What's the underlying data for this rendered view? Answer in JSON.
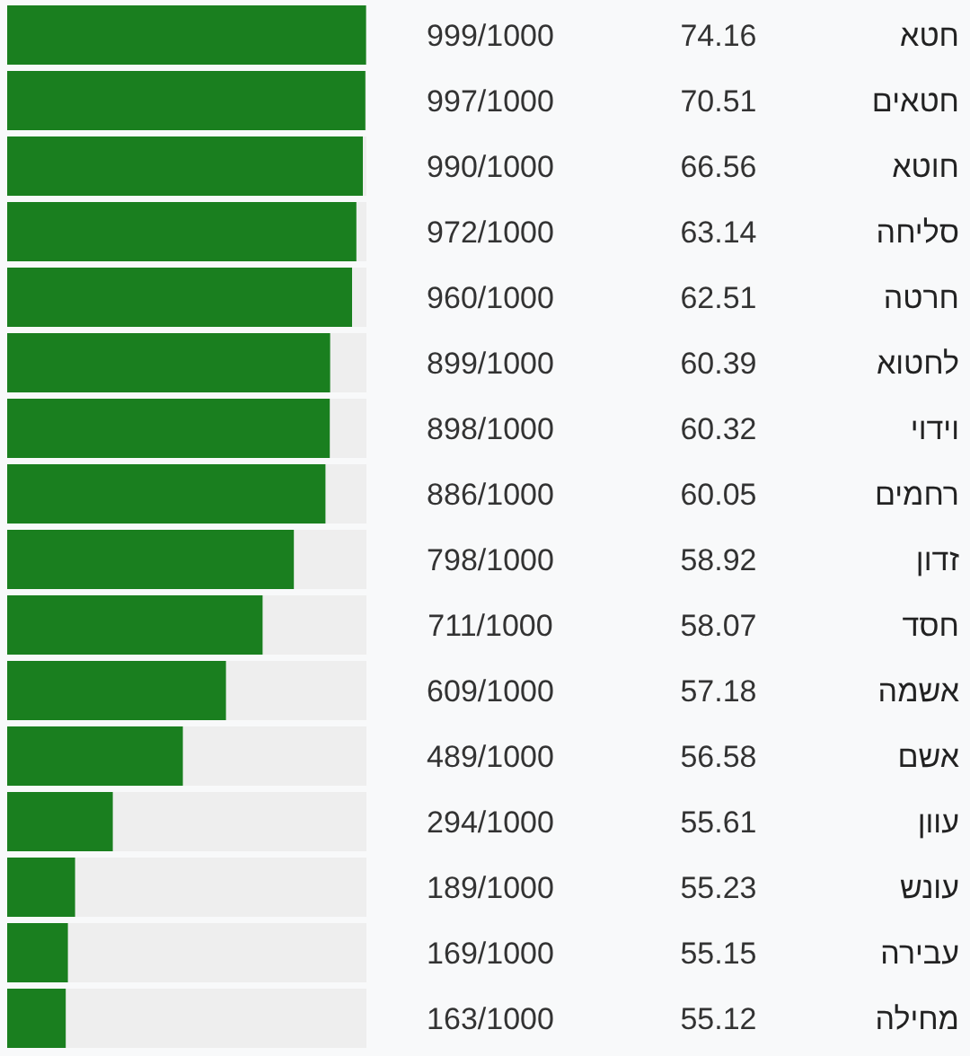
{
  "chart_data": {
    "type": "bar",
    "orientation": "horizontal",
    "color": "#1a7f1f",
    "xlim": [
      0,
      1000
    ],
    "categories": [
      "חטא",
      "חטאים",
      "חוטא",
      "סליחה",
      "חרטה",
      "לחטוא",
      "וידוי",
      "רחמים",
      "זדון",
      "חסד",
      "אשמה",
      "אשם",
      "עוון",
      "עונש",
      "עבירה",
      "מחילה"
    ],
    "values": [
      999,
      997,
      990,
      972,
      960,
      899,
      898,
      886,
      798,
      711,
      609,
      489,
      294,
      189,
      169,
      163
    ],
    "value_labels": [
      "999/1000",
      "997/1000",
      "990/1000",
      "972/1000",
      "960/1000",
      "899/1000",
      "898/1000",
      "886/1000",
      "798/1000",
      "711/1000",
      "609/1000",
      "489/1000",
      "294/1000",
      "189/1000",
      "169/1000",
      "163/1000"
    ],
    "annotations": [
      "74.16",
      "70.51",
      "66.56",
      "63.14",
      "62.51",
      "60.39",
      "60.32",
      "60.05",
      "58.92",
      "58.07",
      "57.18",
      "56.58",
      "55.61",
      "55.23",
      "55.15",
      "55.12"
    ]
  }
}
